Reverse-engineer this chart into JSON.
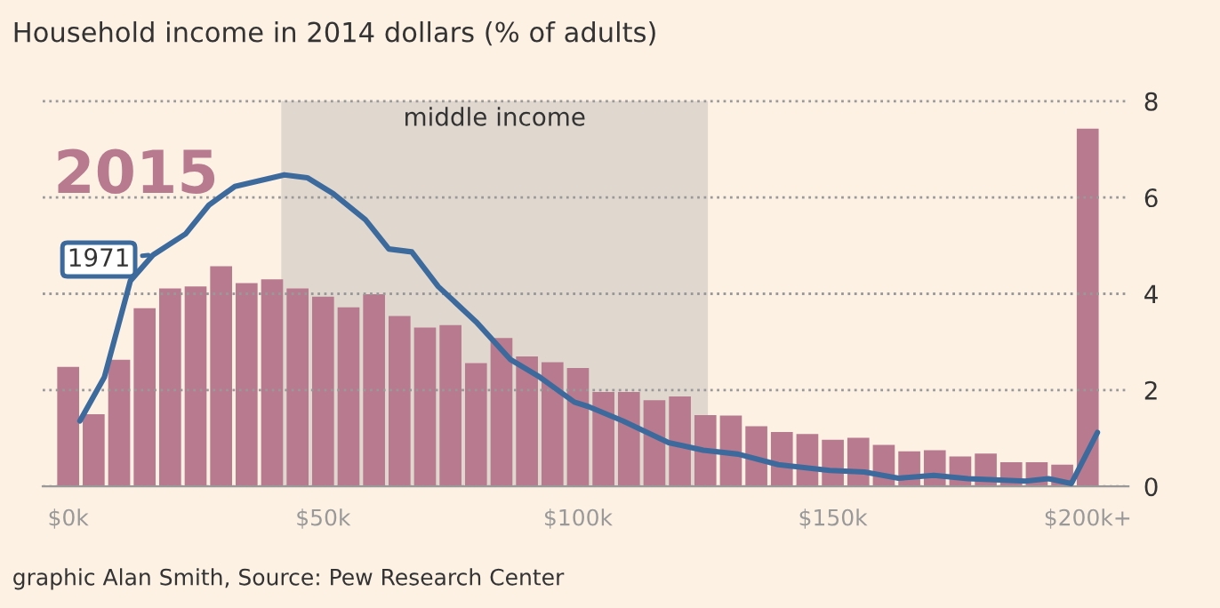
{
  "chart_data": {
    "type": "bar",
    "title": "Household income in 2014 dollars (% of adults)",
    "x": [
      0,
      5,
      10,
      15,
      20,
      25,
      30,
      35,
      40,
      45,
      50,
      55,
      60,
      65,
      70,
      75,
      80,
      85,
      90,
      95,
      100,
      105,
      110,
      115,
      120,
      125,
      130,
      135,
      140,
      145,
      150,
      155,
      160,
      165,
      170,
      175,
      180,
      185,
      190,
      195,
      200
    ],
    "series": [
      {
        "name": "2015",
        "color": "#b87a8e",
        "values": [
          2.48,
          1.5,
          2.63,
          3.7,
          4.11,
          4.15,
          4.57,
          4.22,
          4.3,
          4.11,
          3.94,
          3.72,
          3.99,
          3.54,
          3.3,
          3.35,
          2.56,
          3.08,
          2.7,
          2.58,
          2.46,
          1.96,
          1.96,
          1.79,
          1.87,
          1.48,
          1.47,
          1.25,
          1.13,
          1.09,
          0.97,
          1.01,
          0.86,
          0.73,
          0.75,
          0.62,
          0.68,
          0.5,
          0.5,
          0.45,
          7.43
        ]
      },
      {
        "name": "1971",
        "type": "line",
        "color": "#3d6a9c",
        "x": [
          2.3,
          7.1,
          12.2,
          16.7,
          23,
          27.6,
          32.7,
          42.4,
          46.9,
          52,
          58.3,
          62.9,
          67.4,
          72.6,
          80,
          86.8,
          92.5,
          99.3,
          102,
          108.8,
          117.8,
          124.6,
          131.4,
          139.3,
          149.4,
          156.2,
          162.9,
          169.8,
          176.5,
          187.8,
          192.3,
          196.8,
          201.9
        ],
        "values": [
          1.36,
          2.27,
          4.27,
          4.81,
          5.24,
          5.84,
          6.23,
          6.47,
          6.41,
          6.08,
          5.54,
          4.93,
          4.87,
          4.15,
          3.42,
          2.63,
          2.27,
          1.75,
          1.66,
          1.36,
          0.91,
          0.75,
          0.67,
          0.45,
          0.33,
          0.3,
          0.17,
          0.23,
          0.16,
          0.11,
          0.16,
          0.06,
          1.12
        ]
      }
    ],
    "xlim": [
      -5,
      208
    ],
    "xticks": [
      {
        "value": 0,
        "label": "$0k"
      },
      {
        "value": 50,
        "label": "$50k"
      },
      {
        "value": 100,
        "label": "$100k"
      },
      {
        "value": 150,
        "label": "$150k"
      },
      {
        "value": 200,
        "label": "$200k+"
      }
    ],
    "ylim": [
      0,
      8
    ],
    "yticks": [
      0,
      2,
      4,
      6,
      8
    ],
    "bands": [
      {
        "axis": "x",
        "from": 41.8,
        "to": 125.5,
        "label": "middle income",
        "color": "#e0d8cf"
      }
    ],
    "grid": "y",
    "legend": "left",
    "annotations": [
      "graphic Alan Smith, Source: Pew Research Center"
    ]
  }
}
